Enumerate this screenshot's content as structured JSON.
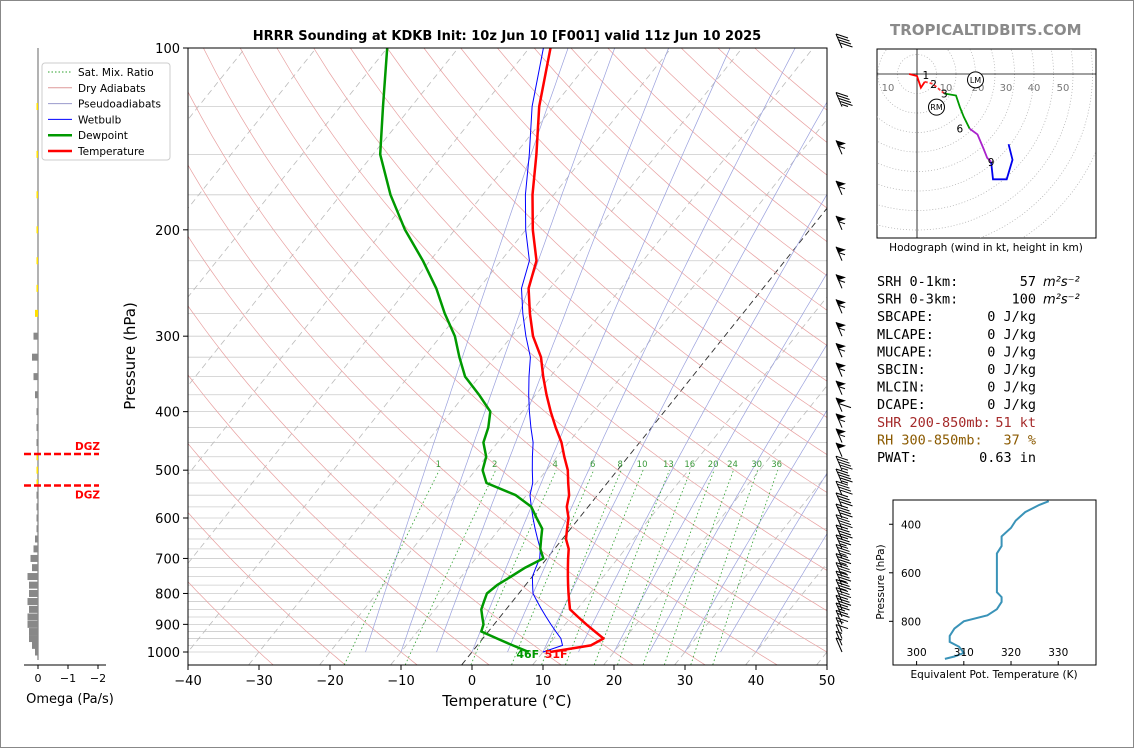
{
  "brand": "TROPICALTIDBITS.COM",
  "chart_data": [
    {
      "type": "skew-t",
      "title": "HRRR Sounding at KDKB Init: 10z Jun 10 [F001] valid 11z Jun 10 2025",
      "xlabel": "Temperature (°C)",
      "ylabel": "Pressure (hPa)",
      "xlim": [
        -40,
        50
      ],
      "ylim": [
        1050,
        100
      ],
      "x_ticks": [
        "−40",
        "−30",
        "−20",
        "−10",
        "0",
        "10",
        "20",
        "30",
        "40",
        "50"
      ],
      "y_ticks": [
        "100",
        "200",
        "300",
        "400",
        "500",
        "600",
        "700",
        "800",
        "900",
        "1000"
      ],
      "legend": [
        {
          "label": "Sat. Mix. Ratio",
          "color": "#2ca02c",
          "style": "dotted"
        },
        {
          "label": "Dry Adiabats",
          "color": "#d99",
          "style": "solid"
        },
        {
          "label": "Pseudoadiabats",
          "color": "#99c",
          "style": "solid"
        },
        {
          "label": "Wetbulb",
          "color": "#0000ff",
          "style": "solid"
        },
        {
          "label": "Dewpoint",
          "color": "#009900",
          "style": "thick"
        },
        {
          "label": "Temperature",
          "color": "#ff0000",
          "style": "thick"
        }
      ],
      "pressure": [
        1000,
        975,
        950,
        925,
        900,
        875,
        850,
        825,
        800,
        775,
        750,
        725,
        700,
        675,
        650,
        625,
        600,
        575,
        550,
        525,
        500,
        475,
        450,
        425,
        400,
        375,
        350,
        325,
        300,
        275,
        250,
        225,
        200,
        175,
        150,
        125,
        100
      ],
      "temperature": [
        11,
        16,
        17,
        15,
        13,
        11,
        9,
        8,
        7,
        6,
        5,
        4,
        3,
        2,
        0.5,
        -0.5,
        -1.5,
        -3,
        -4,
        -5.5,
        -7,
        -9,
        -11,
        -13.5,
        -16,
        -18.5,
        -21,
        -23.5,
        -27,
        -30,
        -33,
        -35,
        -39,
        -43,
        -47,
        -52,
        -57
      ],
      "dewpoint": [
        8,
        5,
        2,
        -1,
        -1.5,
        -2.5,
        -3.5,
        -4,
        -4.5,
        -4,
        -3,
        -2,
        -0.5,
        -2,
        -3,
        -4,
        -6,
        -8,
        -11.5,
        -17,
        -19,
        -20,
        -22,
        -23,
        -24.5,
        -28,
        -32,
        -35,
        -38,
        -42,
        -46,
        -51,
        -57,
        -63,
        -69,
        -74,
        -80
      ],
      "wetbulb": [
        10,
        12,
        11,
        9.5,
        8,
        6.5,
        5,
        3.5,
        2,
        1,
        0,
        -0.5,
        -1,
        -2,
        -3.5,
        -5,
        -6.5,
        -8,
        -9.5,
        -10.5,
        -12,
        -13.5,
        -15,
        -17,
        -19,
        -21,
        -23,
        -25,
        -28,
        -31,
        -34,
        -36,
        -40,
        -44,
        -48,
        -53,
        -58
      ],
      "surface_labels": {
        "dewpoint_f": "46F",
        "temperature_f": "51F"
      },
      "mixing_ratio_labels": [
        "1",
        "2",
        "4",
        "6",
        "8",
        "10",
        "13",
        "16",
        "20",
        "24",
        "30",
        "36"
      ],
      "wind_barbs_pressure": [
        1000,
        975,
        950,
        925,
        900,
        875,
        850,
        825,
        800,
        775,
        750,
        725,
        700,
        675,
        650,
        625,
        600,
        575,
        550,
        525,
        500,
        475,
        450,
        425,
        400,
        375,
        350,
        325,
        300,
        275,
        250,
        225,
        200,
        175,
        150,
        125,
        100
      ],
      "wind_speed_kt": [
        5,
        5,
        10,
        15,
        20,
        25,
        30,
        30,
        35,
        35,
        35,
        35,
        35,
        35,
        40,
        40,
        40,
        40,
        40,
        45,
        45,
        50,
        55,
        55,
        60,
        55,
        55,
        55,
        55,
        55,
        55,
        55,
        55,
        55,
        55,
        45,
        40
      ]
    },
    {
      "type": "bar",
      "title": "",
      "xlabel": "Omega (Pa/s)",
      "x_ticks": [
        "0",
        "−1",
        "−2"
      ],
      "xlim": [
        0,
        -2
      ],
      "dgz_label": "DGZ",
      "dgz_pressure": [
        470,
        530
      ],
      "pressure": [
        1000,
        975,
        950,
        925,
        900,
        875,
        850,
        825,
        800,
        775,
        750,
        725,
        700,
        675,
        650,
        625,
        600,
        575,
        550,
        525,
        500,
        475,
        450,
        425,
        400,
        375,
        350,
        325,
        300,
        275,
        250,
        225,
        200,
        175,
        150,
        125
      ],
      "omega": [
        -0.1,
        -0.2,
        -0.3,
        -0.3,
        -0.35,
        -0.35,
        -0.3,
        -0.35,
        -0.3,
        -0.3,
        -0.35,
        -0.2,
        -0.25,
        -0.15,
        -0.1,
        -0.05,
        -0.05,
        0,
        0,
        0,
        0,
        0,
        0,
        0,
        -0.05,
        -0.1,
        -0.15,
        -0.2,
        -0.15,
        -0.1,
        0,
        -0.02,
        -0.02,
        -0.02,
        -0.02,
        -0.02
      ]
    },
    {
      "type": "line",
      "title": "Hodograph (wind in kt, height in km)",
      "ring_labels": [
        "10",
        "10",
        "20",
        "30",
        "40",
        "50"
      ],
      "point_labels": [
        "1",
        "2",
        "3",
        "6",
        "9"
      ],
      "markers": [
        "LM",
        "RM"
      ],
      "segments": [
        {
          "km": "0-1",
          "color": "#ff0000",
          "u": [
            -4,
            0,
            2,
            4
          ],
          "v": [
            0,
            -1,
            -7,
            -4
          ]
        },
        {
          "km": "1-3",
          "color": "#ff3333",
          "u": [
            4,
            8,
            14
          ],
          "v": [
            -4,
            -5,
            -10
          ]
        },
        {
          "km": "3-6",
          "color": "#009900",
          "u": [
            14,
            20,
            22,
            24,
            27
          ],
          "v": [
            -10,
            -11,
            -17,
            -22,
            -28
          ]
        },
        {
          "km": "6-9",
          "color": "#aa22cc",
          "u": [
            27,
            31,
            34,
            36,
            38
          ],
          "v": [
            -28,
            -31,
            -38,
            -43,
            -45
          ]
        },
        {
          "km": "9+",
          "color": "#0000ee",
          "u": [
            38,
            39,
            46,
            49,
            47
          ],
          "v": [
            -45,
            -54,
            -54,
            -44,
            -36
          ]
        }
      ],
      "storm_motion": {
        "LM": [
          30,
          -3
        ],
        "RM": [
          10,
          -17
        ]
      }
    },
    {
      "type": "line",
      "title": "",
      "xlabel": "Equivalent Pot. Temperature (K)",
      "ylabel": "Pressure (hPa)",
      "x_ticks": [
        "300",
        "310",
        "320",
        "330"
      ],
      "y_ticks": [
        "400",
        "600",
        "800"
      ],
      "xlim": [
        295,
        338
      ],
      "ylim": [
        980,
        300
      ],
      "color": "#3a93b8",
      "pressure": [
        955,
        945,
        930,
        905,
        885,
        860,
        830,
        800,
        775,
        750,
        720,
        700,
        680,
        640,
        600,
        560,
        520,
        490,
        450,
        415,
        385,
        350,
        320,
        305
      ],
      "theta_e": [
        306,
        308,
        310,
        309,
        307,
        307,
        308,
        310,
        315,
        317,
        318,
        318,
        317,
        317,
        317,
        317,
        317,
        318,
        318,
        320,
        321,
        323,
        326,
        328
      ]
    }
  ],
  "indices": [
    {
      "label": "SRH 0-1km:",
      "value": "57",
      "unit": "m²s⁻²",
      "color": "#000000"
    },
    {
      "label": "SRH 0-3km:",
      "value": "100",
      "unit": "m²s⁻²",
      "color": "#000000"
    },
    {
      "label": "SBCAPE:",
      "value": "0 J/kg",
      "unit": "",
      "color": "#000000"
    },
    {
      "label": "MLCAPE:",
      "value": "0 J/kg",
      "unit": "",
      "color": "#000000"
    },
    {
      "label": "MUCAPE:",
      "value": "0 J/kg",
      "unit": "",
      "color": "#000000"
    },
    {
      "label": "SBCIN:",
      "value": "0 J/kg",
      "unit": "",
      "color": "#000000"
    },
    {
      "label": "MLCIN:",
      "value": "0 J/kg",
      "unit": "",
      "color": "#000000"
    },
    {
      "label": "DCAPE:",
      "value": "0 J/kg",
      "unit": "",
      "color": "#000000"
    },
    {
      "label": "SHR 200-850mb:",
      "value": "51 kt",
      "unit": "",
      "color": "#a52a2a"
    },
    {
      "label": "RH 300-850mb:",
      "value": "37 %",
      "unit": "",
      "color": "#8b5a00"
    },
    {
      "label": "PWAT:",
      "value": "0.63 in",
      "unit": "",
      "color": "#000000"
    }
  ]
}
